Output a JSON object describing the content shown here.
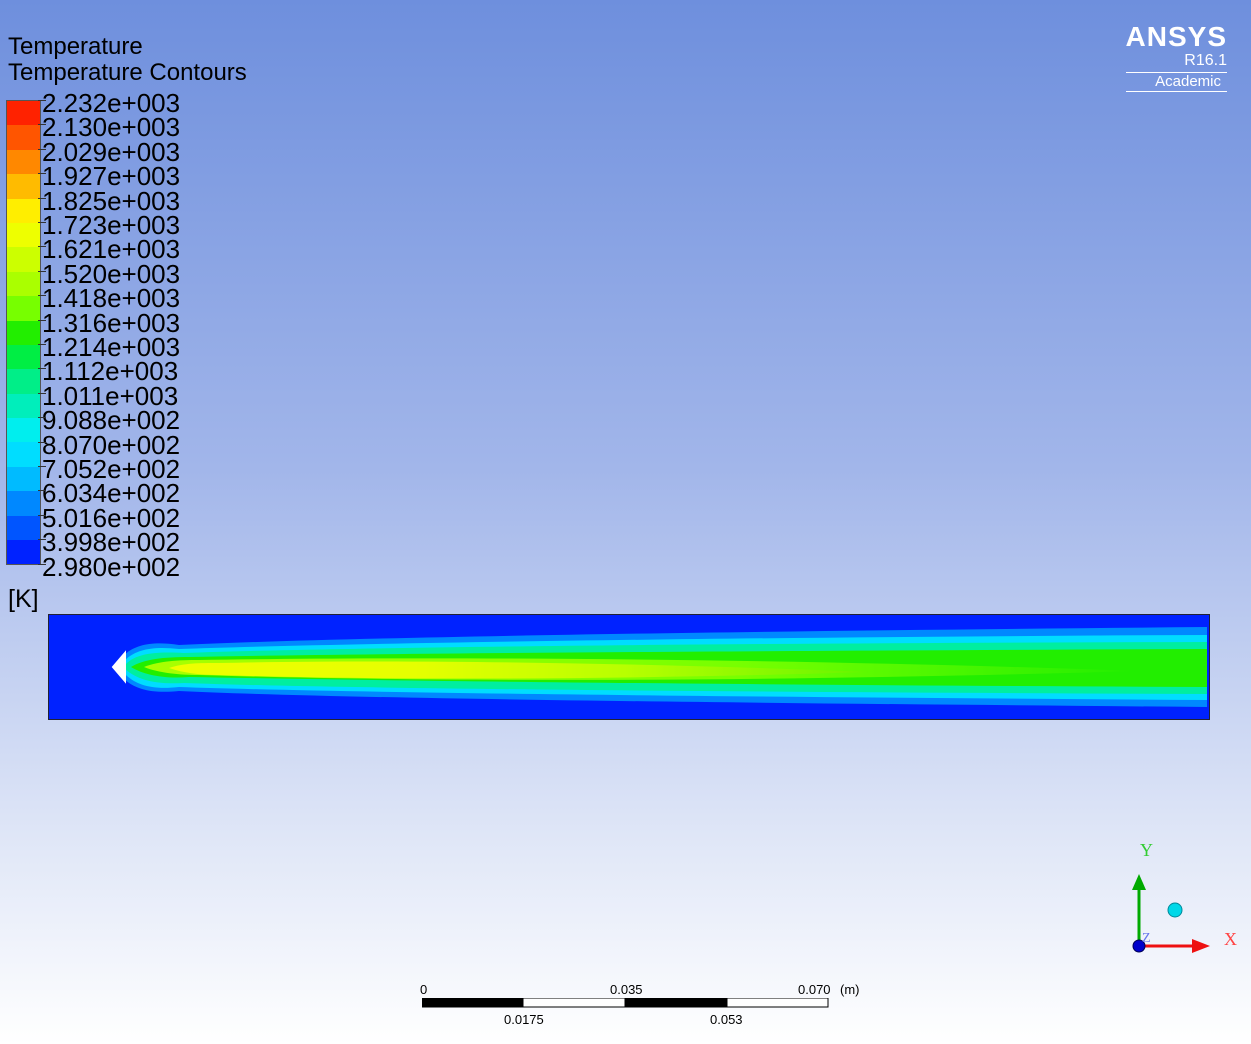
{
  "title": "Temperature",
  "subtitle": "Temperature Contours",
  "legend": {
    "labels": [
      "2.232e+003",
      "2.130e+003",
      "2.029e+003",
      "1.927e+003",
      "1.825e+003",
      "1.723e+003",
      "1.621e+003",
      "1.520e+003",
      "1.418e+003",
      "1.316e+003",
      "1.214e+003",
      "1.112e+003",
      "1.011e+003",
      "9.088e+002",
      "8.070e+002",
      "7.052e+002",
      "6.034e+002",
      "5.016e+002",
      "3.998e+002",
      "2.980e+002"
    ],
    "colors": [
      "#ff2200",
      "#ff5500",
      "#ff8800",
      "#ffbb00",
      "#ffee00",
      "#eeff00",
      "#ccff00",
      "#aaff00",
      "#77ff00",
      "#22ee00",
      "#00ee44",
      "#00ee88",
      "#00eebb",
      "#00eeee",
      "#00ddff",
      "#00bbff",
      "#0088ff",
      "#0055ff",
      "#0022ff"
    ],
    "unit": "[K]"
  },
  "brand": {
    "name": "ANSYS",
    "version": "R16.1",
    "edition": "Academic"
  },
  "scale_bar": {
    "top_labels": [
      "0",
      "0.035",
      "0.070"
    ],
    "bottom_labels": [
      "0.0175",
      "0.053"
    ],
    "unit": "(m)"
  },
  "axes": {
    "y": "Y",
    "x": "X",
    "z": "Z"
  }
}
